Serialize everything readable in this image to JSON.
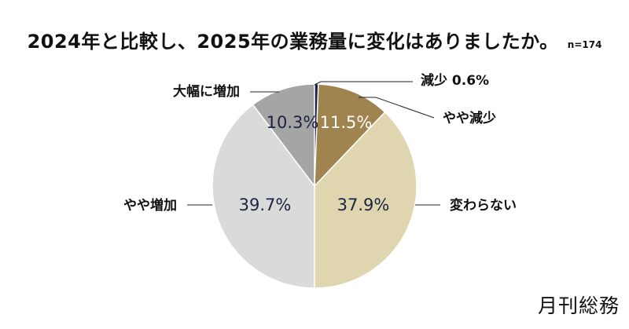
{
  "title": "2024年と比較し、2025年の業務量に変化はありましたか。",
  "sample_size": "n=174",
  "brand": "月刊総務",
  "chart_data": {
    "type": "pie",
    "title": "2024年と比較し、2025年の業務量に変化はありましたか。",
    "note": "n=174",
    "slices": [
      {
        "label": "減少",
        "value": 0.6,
        "color": "#1c2340",
        "value_label": "0.6%",
        "label_text_color": "#111111"
      },
      {
        "label": "やや減少",
        "value": 11.5,
        "color": "#a08450",
        "value_label": "11.5%",
        "label_text_color": "#ffffff"
      },
      {
        "label": "変わらない",
        "value": 37.9,
        "color": "#dfd6b0",
        "value_label": "37.9%",
        "label_text_color": "#1c2340"
      },
      {
        "label": "やや増加",
        "value": 39.7,
        "color": "#dadada",
        "value_label": "39.7%",
        "label_text_color": "#1c2340"
      },
      {
        "label": "大幅に増加",
        "value": 10.3,
        "color": "#a5a5a5",
        "value_label": "10.3%",
        "label_text_color": "#1c2340"
      }
    ],
    "start": "12 o'clock",
    "direction": "clockwise",
    "legend": "none (callout labels)"
  }
}
